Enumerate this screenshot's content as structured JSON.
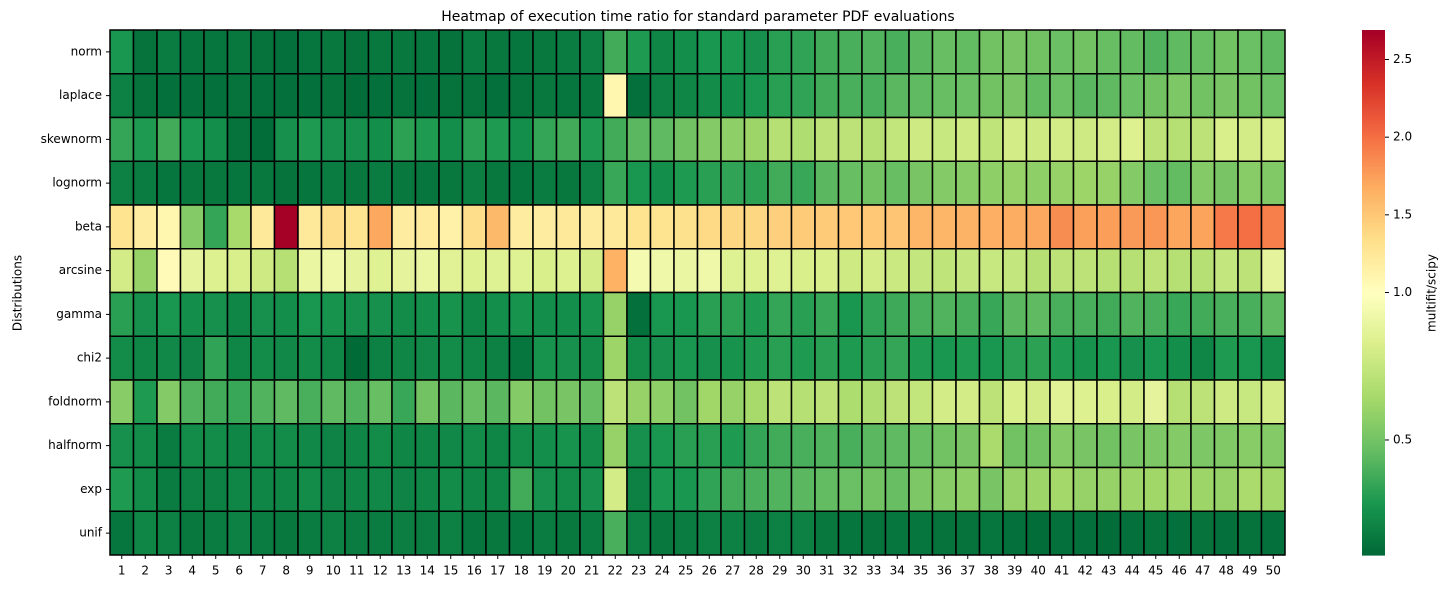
{
  "chart_data": {
    "type": "heatmap",
    "title": "Heatmap of execution time ratio for standard parameter PDF evaluations",
    "ylabel": "Distributions",
    "colorbar_label": "multifit/scipy",
    "colormap": "RdYlGn_r",
    "clim": [
      0.11,
      2.69
    ],
    "vcenter": 1,
    "cticks": [
      0.5,
      {
        "value": 1,
        "label": "1.0"
      },
      1.5,
      {
        "value": 2,
        "label": "2.0"
      },
      2.5
    ],
    "columns": [
      1,
      2,
      3,
      4,
      5,
      6,
      7,
      8,
      9,
      10,
      11,
      12,
      13,
      14,
      15,
      16,
      17,
      18,
      19,
      20,
      21,
      22,
      23,
      24,
      25,
      26,
      27,
      28,
      29,
      30,
      31,
      32,
      33,
      34,
      35,
      36,
      37,
      38,
      39,
      40,
      41,
      42,
      43,
      44,
      45,
      46,
      47,
      48,
      49,
      50
    ],
    "rows": [
      "norm",
      "laplace",
      "skewnorm",
      "lognorm",
      "beta",
      "arcsine",
      "gamma",
      "chi2",
      "foldnorm",
      "halfnorm",
      "exp",
      "unif"
    ],
    "values": [
      [
        0.28,
        0.15,
        0.18,
        0.16,
        0.16,
        0.17,
        0.15,
        0.14,
        0.16,
        0.17,
        0.15,
        0.17,
        0.17,
        0.16,
        0.15,
        0.18,
        0.17,
        0.16,
        0.17,
        0.18,
        0.2,
        0.38,
        0.3,
        0.22,
        0.25,
        0.28,
        0.29,
        0.26,
        0.32,
        0.34,
        0.38,
        0.4,
        0.42,
        0.4,
        0.44,
        0.47,
        0.46,
        0.5,
        0.52,
        0.5,
        0.48,
        0.5,
        0.47,
        0.46,
        0.42,
        0.45,
        0.47,
        0.5,
        0.48,
        0.45
      ],
      [
        0.2,
        0.15,
        0.14,
        0.14,
        0.14,
        0.15,
        0.14,
        0.14,
        0.14,
        0.15,
        0.13,
        0.14,
        0.15,
        0.14,
        0.15,
        0.15,
        0.14,
        0.15,
        0.17,
        0.16,
        0.17,
        1.1,
        0.14,
        0.2,
        0.22,
        0.24,
        0.25,
        0.28,
        0.32,
        0.34,
        0.38,
        0.4,
        0.4,
        0.44,
        0.45,
        0.47,
        0.48,
        0.5,
        0.52,
        0.46,
        0.48,
        0.44,
        0.45,
        0.48,
        0.5,
        0.53,
        0.5,
        0.52,
        0.5,
        0.48
      ],
      [
        0.35,
        0.3,
        0.38,
        0.28,
        0.25,
        0.15,
        0.13,
        0.26,
        0.3,
        0.26,
        0.26,
        0.25,
        0.33,
        0.3,
        0.25,
        0.32,
        0.3,
        0.25,
        0.35,
        0.38,
        0.3,
        0.38,
        0.44,
        0.45,
        0.5,
        0.55,
        0.58,
        0.62,
        0.7,
        0.68,
        0.72,
        0.72,
        0.7,
        0.74,
        0.78,
        0.76,
        0.78,
        0.73,
        0.8,
        0.78,
        0.8,
        0.78,
        0.8,
        0.84,
        0.72,
        0.7,
        0.72,
        0.82,
        0.8,
        0.82
      ],
      [
        0.2,
        0.18,
        0.16,
        0.17,
        0.17,
        0.16,
        0.17,
        0.15,
        0.16,
        0.18,
        0.17,
        0.18,
        0.17,
        0.16,
        0.17,
        0.19,
        0.17,
        0.16,
        0.18,
        0.17,
        0.2,
        0.36,
        0.28,
        0.25,
        0.3,
        0.32,
        0.34,
        0.33,
        0.38,
        0.36,
        0.44,
        0.47,
        0.5,
        0.47,
        0.52,
        0.55,
        0.56,
        0.58,
        0.6,
        0.58,
        0.6,
        0.62,
        0.6,
        0.55,
        0.48,
        0.46,
        0.55,
        0.52,
        0.56,
        0.54
      ],
      [
        1.3,
        1.2,
        1.1,
        0.55,
        0.35,
        0.65,
        1.25,
        2.69,
        1.25,
        1.35,
        1.3,
        1.7,
        1.2,
        1.22,
        1.15,
        1.35,
        1.6,
        1.2,
        1.2,
        1.25,
        1.22,
        1.25,
        1.3,
        1.3,
        1.33,
        1.38,
        1.4,
        1.4,
        1.45,
        1.48,
        1.48,
        1.5,
        1.5,
        1.52,
        1.62,
        1.62,
        1.64,
        1.66,
        1.68,
        1.7,
        1.85,
        1.75,
        1.76,
        1.78,
        1.8,
        1.72,
        1.73,
        1.95,
        2.0,
        1.92
      ],
      [
        0.8,
        0.6,
        1.05,
        0.88,
        0.84,
        0.82,
        0.78,
        0.7,
        0.9,
        0.92,
        0.88,
        0.85,
        0.88,
        0.9,
        0.86,
        0.84,
        0.85,
        0.85,
        0.82,
        0.84,
        0.8,
        1.65,
        0.95,
        0.92,
        0.9,
        0.92,
        0.85,
        0.84,
        0.85,
        0.82,
        0.82,
        0.78,
        0.8,
        0.77,
        0.75,
        0.73,
        0.75,
        0.76,
        0.75,
        0.7,
        0.72,
        0.72,
        0.7,
        0.7,
        0.72,
        0.7,
        0.7,
        0.75,
        0.72,
        0.88
      ],
      [
        0.32,
        0.26,
        0.28,
        0.25,
        0.26,
        0.22,
        0.26,
        0.25,
        0.28,
        0.27,
        0.26,
        0.26,
        0.24,
        0.25,
        0.27,
        0.22,
        0.25,
        0.27,
        0.25,
        0.25,
        0.27,
        0.6,
        0.14,
        0.28,
        0.28,
        0.32,
        0.33,
        0.3,
        0.35,
        0.32,
        0.36,
        0.28,
        0.34,
        0.37,
        0.4,
        0.42,
        0.4,
        0.36,
        0.44,
        0.45,
        0.4,
        0.4,
        0.38,
        0.42,
        0.4,
        0.36,
        0.38,
        0.4,
        0.4,
        0.45
      ],
      [
        0.24,
        0.22,
        0.23,
        0.21,
        0.34,
        0.22,
        0.24,
        0.23,
        0.24,
        0.22,
        0.12,
        0.2,
        0.22,
        0.23,
        0.24,
        0.22,
        0.2,
        0.16,
        0.27,
        0.26,
        0.24,
        0.62,
        0.24,
        0.26,
        0.28,
        0.26,
        0.27,
        0.3,
        0.32,
        0.3,
        0.32,
        0.3,
        0.32,
        0.35,
        0.3,
        0.28,
        0.3,
        0.28,
        0.32,
        0.33,
        0.3,
        0.27,
        0.28,
        0.26,
        0.28,
        0.25,
        0.22,
        0.3,
        0.28,
        0.24
      ],
      [
        0.56,
        0.3,
        0.55,
        0.42,
        0.38,
        0.36,
        0.42,
        0.45,
        0.4,
        0.45,
        0.42,
        0.47,
        0.36,
        0.5,
        0.44,
        0.47,
        0.44,
        0.55,
        0.5,
        0.52,
        0.47,
        0.72,
        0.6,
        0.58,
        0.5,
        0.63,
        0.6,
        0.65,
        0.72,
        0.7,
        0.72,
        0.67,
        0.68,
        0.72,
        0.74,
        0.8,
        0.8,
        0.72,
        0.82,
        0.8,
        0.86,
        0.84,
        0.82,
        0.8,
        0.88,
        0.7,
        0.72,
        0.78,
        0.76,
        0.8
      ],
      [
        0.26,
        0.24,
        0.18,
        0.24,
        0.24,
        0.22,
        0.24,
        0.24,
        0.23,
        0.21,
        0.22,
        0.24,
        0.22,
        0.22,
        0.23,
        0.24,
        0.22,
        0.24,
        0.25,
        0.27,
        0.24,
        0.6,
        0.26,
        0.28,
        0.32,
        0.32,
        0.3,
        0.35,
        0.38,
        0.4,
        0.42,
        0.4,
        0.44,
        0.45,
        0.47,
        0.5,
        0.52,
        0.66,
        0.5,
        0.5,
        0.55,
        0.52,
        0.5,
        0.52,
        0.53,
        0.55,
        0.53,
        0.54,
        0.56,
        0.55
      ],
      [
        0.3,
        0.24,
        0.18,
        0.2,
        0.2,
        0.22,
        0.22,
        0.22,
        0.24,
        0.21,
        0.22,
        0.23,
        0.21,
        0.22,
        0.24,
        0.22,
        0.22,
        0.38,
        0.26,
        0.24,
        0.26,
        0.8,
        0.2,
        0.28,
        0.28,
        0.34,
        0.38,
        0.4,
        0.42,
        0.44,
        0.46,
        0.48,
        0.5,
        0.47,
        0.53,
        0.56,
        0.58,
        0.52,
        0.6,
        0.62,
        0.64,
        0.6,
        0.6,
        0.62,
        0.63,
        0.64,
        0.62,
        0.6,
        0.66,
        0.64
      ],
      [
        0.16,
        0.22,
        0.2,
        0.17,
        0.18,
        0.2,
        0.18,
        0.17,
        0.18,
        0.2,
        0.18,
        0.18,
        0.19,
        0.18,
        0.2,
        0.16,
        0.17,
        0.16,
        0.18,
        0.17,
        0.18,
        0.4,
        0.2,
        0.17,
        0.18,
        0.2,
        0.2,
        0.18,
        0.2,
        0.2,
        0.17,
        0.16,
        0.15,
        0.16,
        0.16,
        0.15,
        0.15,
        0.16,
        0.14,
        0.13,
        0.14,
        0.14,
        0.13,
        0.14,
        0.15,
        0.14,
        0.15,
        0.14,
        0.15,
        0.14
      ]
    ]
  }
}
